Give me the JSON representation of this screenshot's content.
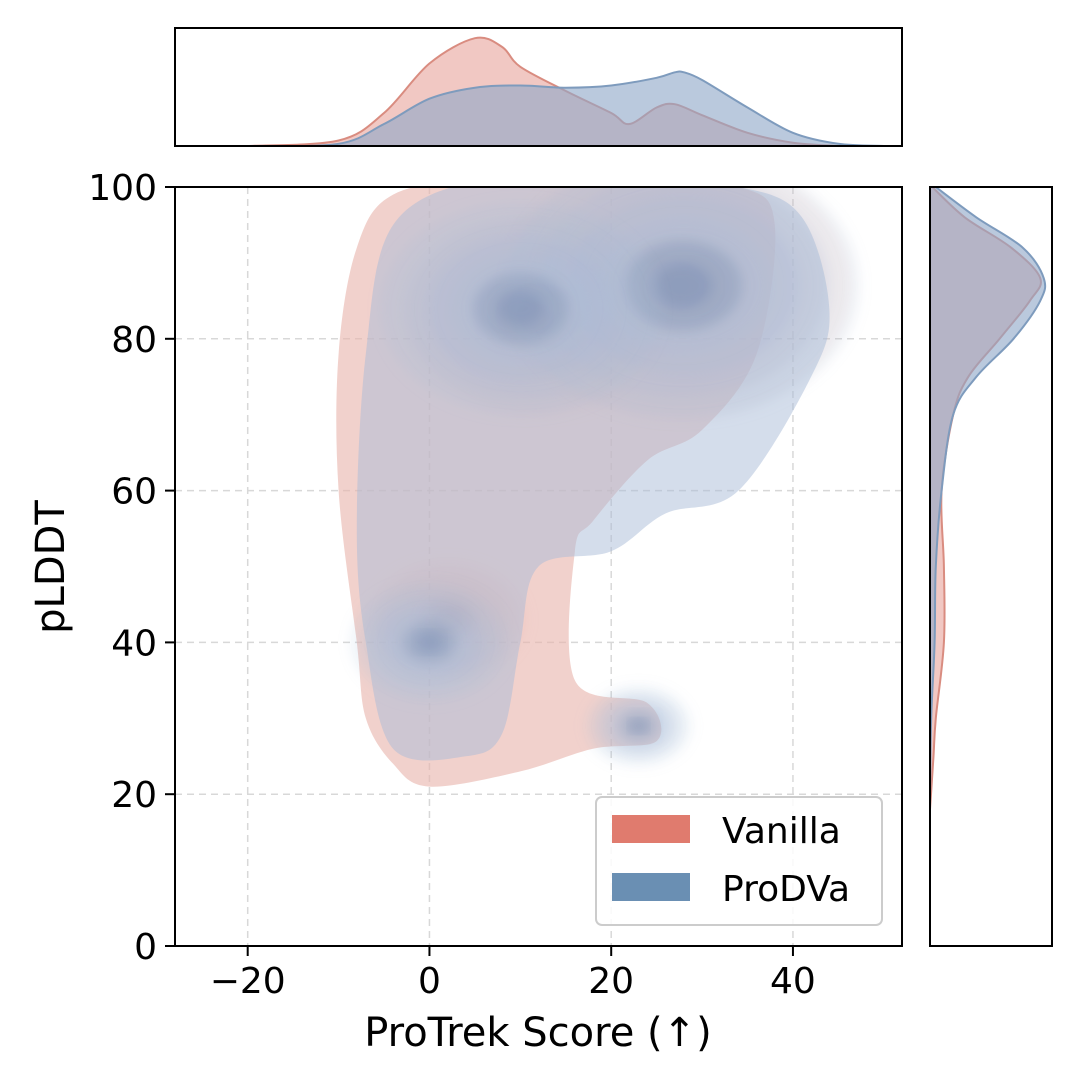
{
  "chart_data": {
    "type": "area",
    "subtype": "joint-kde-plot",
    "title": "",
    "xlabel": "ProTrek Score (↑)",
    "ylabel": "pLDDT",
    "xlim": [
      -28,
      52
    ],
    "ylim": [
      0,
      100
    ],
    "x_ticks": [
      -20,
      0,
      20,
      40
    ],
    "x_tick_labels": [
      "−20",
      "0",
      "20",
      "40"
    ],
    "y_ticks": [
      0,
      20,
      40,
      60,
      80,
      100
    ],
    "y_tick_labels": [
      "0",
      "20",
      "40",
      "60",
      "80",
      "100"
    ],
    "grid": true,
    "legend_position": "lower-right",
    "series": [
      {
        "name": "Vanilla",
        "color": "#e07b6e",
        "joint_outer_contour": [
          [
            -8,
            40
          ],
          [
            -10,
            60
          ],
          [
            -10,
            78
          ],
          [
            -8,
            92
          ],
          [
            -4,
            99
          ],
          [
            6,
            101
          ],
          [
            20,
            101
          ],
          [
            34,
            100
          ],
          [
            38,
            95
          ],
          [
            36,
            78
          ],
          [
            30,
            68
          ],
          [
            24,
            64
          ],
          [
            18,
            56
          ],
          [
            16,
            52
          ],
          [
            16,
            35
          ],
          [
            24,
            32
          ],
          [
            25,
            27
          ],
          [
            18,
            26
          ],
          [
            10,
            23
          ],
          [
            0,
            21
          ],
          [
            -4,
            24
          ],
          [
            -7,
            30
          ]
        ],
        "joint_peaks": [
          {
            "x": 27,
            "y": 87,
            "density": 1.0
          },
          {
            "x": 12,
            "y": 83,
            "density": 0.75
          },
          {
            "x": 2,
            "y": 43,
            "density": 0.45
          }
        ],
        "x_marginal": {
          "x": [
            -20,
            -10,
            -5,
            0,
            5,
            8,
            10,
            15,
            20,
            22,
            25,
            27,
            30,
            35,
            40,
            45
          ],
          "density": [
            0.0,
            0.05,
            0.3,
            0.75,
            0.98,
            0.9,
            0.72,
            0.5,
            0.3,
            0.2,
            0.35,
            0.38,
            0.28,
            0.12,
            0.03,
            0.0
          ]
        },
        "y_marginal": {
          "y": [
            18,
            25,
            30,
            40,
            50,
            60,
            70,
            75,
            80,
            85,
            88,
            92,
            96,
            100
          ],
          "density": [
            0.0,
            0.03,
            0.05,
            0.12,
            0.12,
            0.1,
            0.2,
            0.33,
            0.6,
            0.86,
            0.95,
            0.7,
            0.3,
            0.02
          ]
        }
      },
      {
        "name": "ProDVa",
        "color": "#6a8fb3",
        "joint_outer_contour": [
          [
            -8,
            55
          ],
          [
            -7,
            78
          ],
          [
            -4,
            95
          ],
          [
            6,
            101
          ],
          [
            20,
            101
          ],
          [
            34,
            100
          ],
          [
            41,
            96
          ],
          [
            44,
            84
          ],
          [
            42,
            75
          ],
          [
            34,
            60
          ],
          [
            26,
            57
          ],
          [
            20,
            52
          ],
          [
            12,
            50
          ],
          [
            10,
            40
          ],
          [
            8,
            28
          ],
          [
            4,
            25
          ],
          [
            -4,
            26
          ],
          [
            -7,
            40
          ]
        ],
        "joint_peaks": [
          {
            "x": 28,
            "y": 87,
            "density": 1.0
          },
          {
            "x": 10,
            "y": 84,
            "density": 0.8
          },
          {
            "x": 0,
            "y": 40,
            "density": 0.45
          },
          {
            "x": 23,
            "y": 29,
            "density": 0.3
          }
        ],
        "x_marginal": {
          "x": [
            -20,
            -10,
            -5,
            0,
            5,
            10,
            15,
            20,
            25,
            27,
            28,
            30,
            35,
            40,
            45,
            50
          ],
          "density": [
            0.0,
            0.02,
            0.2,
            0.43,
            0.53,
            0.55,
            0.53,
            0.55,
            0.62,
            0.67,
            0.67,
            0.6,
            0.35,
            0.12,
            0.02,
            0.0
          ]
        },
        "y_marginal": {
          "y": [
            20,
            30,
            40,
            50,
            60,
            70,
            75,
            80,
            85,
            88,
            92,
            96,
            100
          ],
          "density": [
            0.0,
            0.01,
            0.04,
            0.05,
            0.1,
            0.2,
            0.4,
            0.72,
            0.95,
            0.98,
            0.8,
            0.4,
            0.05
          ]
        }
      }
    ]
  }
}
